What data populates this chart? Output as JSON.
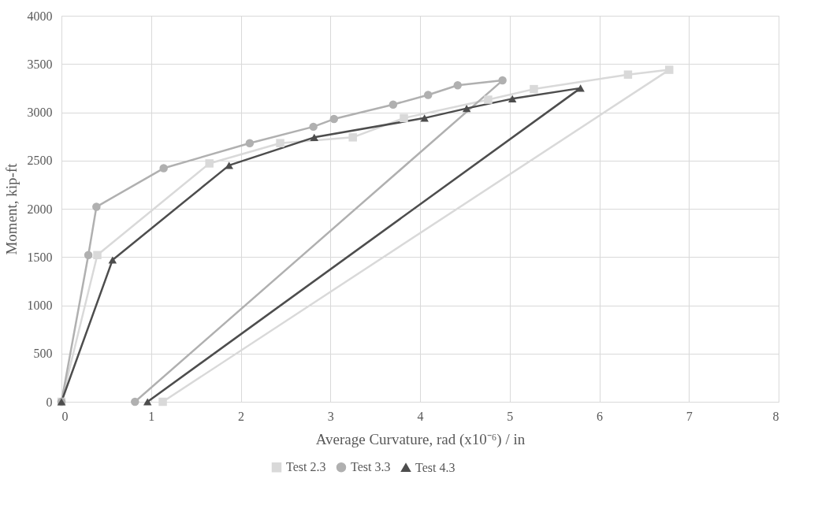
{
  "chart_data": {
    "type": "line",
    "xlabel": "Average Curvature, rad (x10⁻⁶) / in",
    "ylabel": "Moment, kip-ft",
    "xlim": [
      0,
      8
    ],
    "xticks": [
      0,
      1,
      2,
      3,
      4,
      5,
      6,
      7,
      8
    ],
    "ylim": [
      0,
      4000
    ],
    "yticks": [
      0,
      500,
      1000,
      1500,
      2000,
      2500,
      3000,
      3500,
      4000
    ],
    "grid": true,
    "legend": "bottom",
    "line_style": "solid",
    "series": [
      {
        "name": "Test 2.3",
        "color": "#d9d9d9",
        "marker": "square",
        "x": [
          0,
          0.4,
          1.65,
          2.44,
          3.25,
          3.82,
          4.76,
          5.27,
          6.32,
          6.78,
          1.13
        ],
        "values": [
          0,
          1520,
          2470,
          2680,
          2740,
          2940,
          3130,
          3240,
          3390,
          3440,
          0
        ]
      },
      {
        "name": "Test 3.3",
        "color": "#b0b0b0",
        "marker": "circle",
        "x": [
          0,
          0.3,
          0.39,
          1.14,
          2.1,
          2.81,
          3.04,
          3.7,
          4.09,
          4.42,
          4.92,
          0.82
        ],
        "values": [
          0,
          1520,
          2020,
          2420,
          2680,
          2850,
          2930,
          3080,
          3180,
          3280,
          3330,
          0
        ]
      },
      {
        "name": "Test 4.3",
        "color": "#4d4d4d",
        "marker": "triangle",
        "x": [
          0,
          0.57,
          1.87,
          2.82,
          4.05,
          4.52,
          5.03,
          5.79,
          0.96
        ],
        "values": [
          0,
          1470,
          2450,
          2740,
          2940,
          3040,
          3140,
          3250,
          0
        ]
      }
    ]
  }
}
